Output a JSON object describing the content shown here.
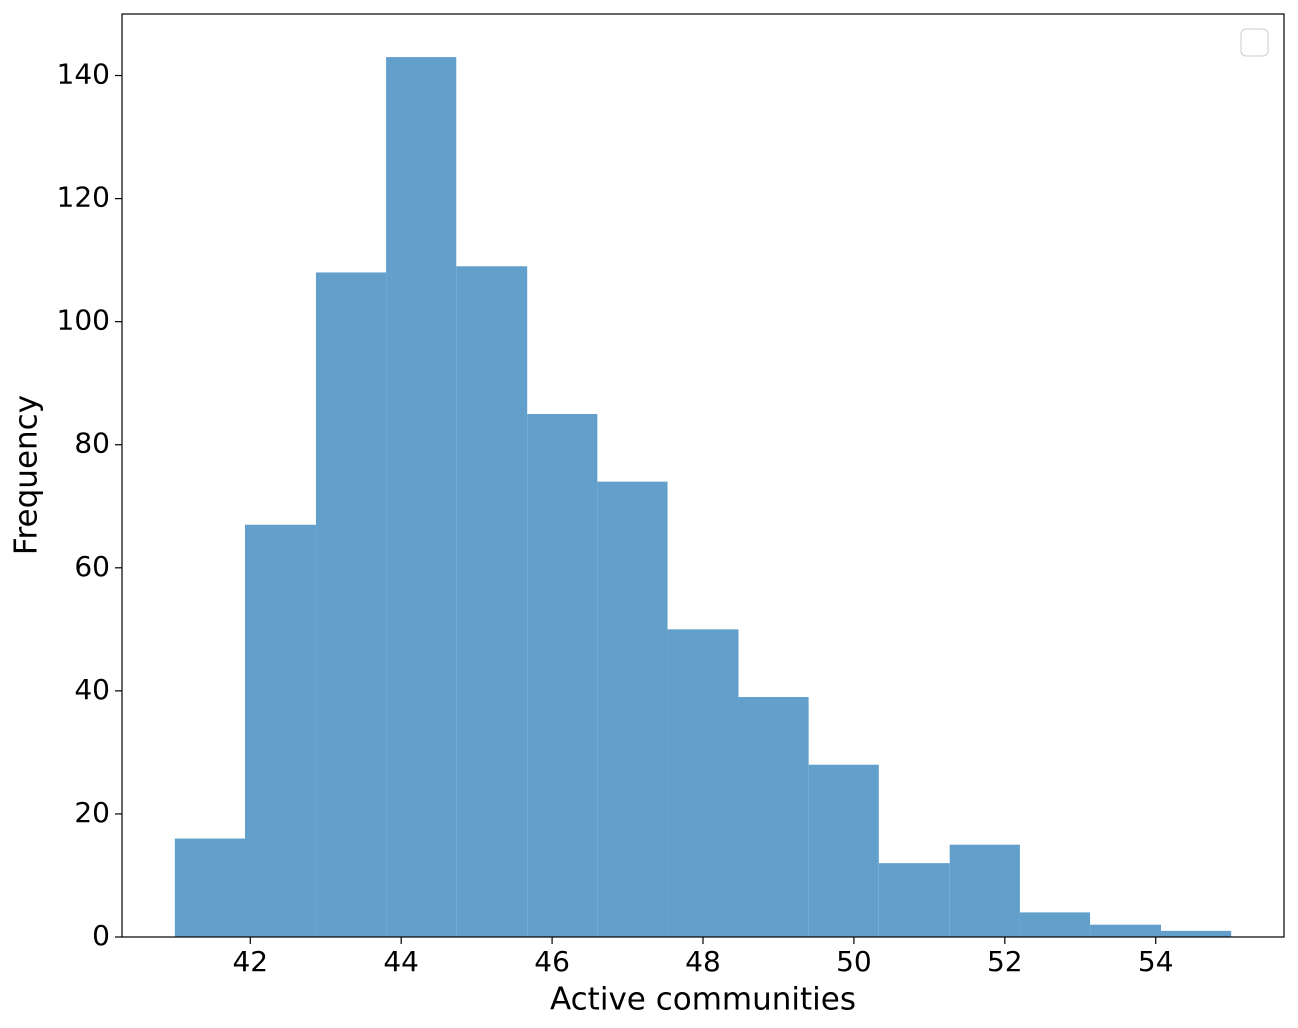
{
  "chart_data": {
    "type": "histogram",
    "x_label": "Active communities",
    "y_label": "Frequency",
    "bins": [
      41,
      41.93,
      42.87,
      43.8,
      44.73,
      45.67,
      46.6,
      47.53,
      48.47,
      49.4,
      50.33,
      51.27,
      52.2,
      53.13,
      54.07,
      55
    ],
    "values": [
      16,
      67,
      108,
      143,
      109,
      85,
      74,
      50,
      39,
      28,
      12,
      15,
      4,
      2,
      1
    ],
    "color": "#62a0cb",
    "xlim": [
      40.3,
      55.7
    ],
    "xticks": [
      42,
      44,
      46,
      48,
      50,
      52,
      54
    ],
    "ylim": [
      0,
      150
    ],
    "yticks": [
      0,
      20,
      40,
      60,
      80,
      100,
      120,
      140
    ],
    "grid": false
  }
}
